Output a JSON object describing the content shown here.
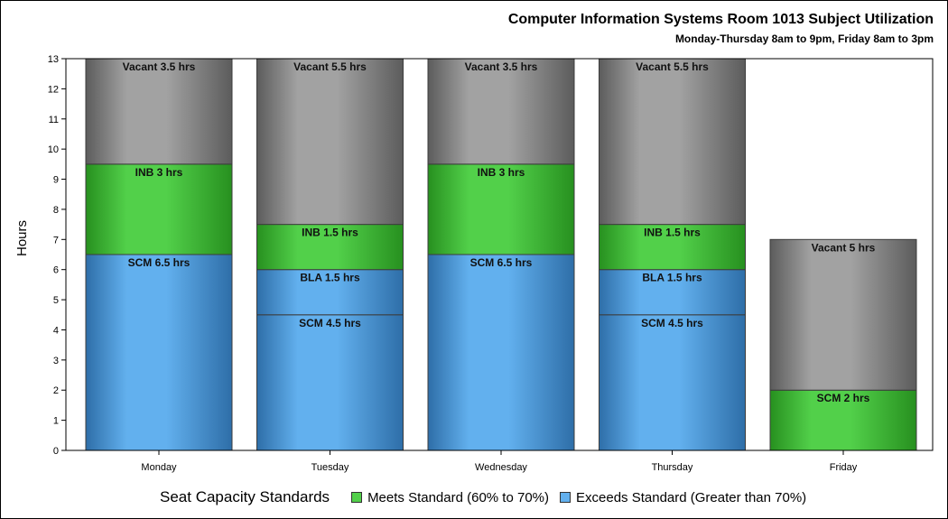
{
  "chart_data": {
    "type": "bar",
    "stacked": true,
    "title": "Computer Information Systems Room 1013 Subject Utilization",
    "subtitle": "Monday-Thursday 8am to 9pm, Friday 8am to 3pm",
    "ylabel": "Hours",
    "xlabel": "",
    "ylim": [
      0,
      13
    ],
    "yticks": [
      0,
      1,
      2,
      3,
      4,
      5,
      6,
      7,
      8,
      9,
      10,
      11,
      12,
      13
    ],
    "grid": false,
    "categories": [
      "Monday",
      "Tuesday",
      "Wednesday",
      "Thursday",
      "Friday"
    ],
    "stacks": [
      [
        {
          "label": "SCM 6.5 hrs",
          "value": 6.5,
          "kind": "exceeds"
        },
        {
          "label": "INB 3 hrs",
          "value": 3,
          "kind": "meets"
        },
        {
          "label": "Vacant 3.5 hrs",
          "value": 3.5,
          "kind": "vacant"
        }
      ],
      [
        {
          "label": "SCM 4.5 hrs",
          "value": 4.5,
          "kind": "exceeds"
        },
        {
          "label": "BLA 1.5 hrs",
          "value": 1.5,
          "kind": "exceeds"
        },
        {
          "label": "INB 1.5 hrs",
          "value": 1.5,
          "kind": "meets"
        },
        {
          "label": "Vacant 5.5 hrs",
          "value": 5.5,
          "kind": "vacant"
        }
      ],
      [
        {
          "label": "SCM 6.5 hrs",
          "value": 6.5,
          "kind": "exceeds"
        },
        {
          "label": "INB 3 hrs",
          "value": 3,
          "kind": "meets"
        },
        {
          "label": "Vacant 3.5 hrs",
          "value": 3.5,
          "kind": "vacant"
        }
      ],
      [
        {
          "label": "SCM 4.5 hrs",
          "value": 4.5,
          "kind": "exceeds"
        },
        {
          "label": "BLA 1.5 hrs",
          "value": 1.5,
          "kind": "exceeds"
        },
        {
          "label": "INB 1.5 hrs",
          "value": 1.5,
          "kind": "meets"
        },
        {
          "label": "Vacant 5.5 hrs",
          "value": 5.5,
          "kind": "vacant"
        }
      ],
      [
        {
          "label": "SCM 2 hrs",
          "value": 2,
          "kind": "meets"
        },
        {
          "label": "Vacant 5 hrs",
          "value": 5,
          "kind": "vacant"
        }
      ]
    ],
    "legend": {
      "position": "bottom",
      "title": "Seat Capacity Standards",
      "items": [
        {
          "key": "meets",
          "label": "Meets Standard (60% to 70%)"
        },
        {
          "key": "exceeds",
          "label": "Exceeds Standard (Greater than 70%)"
        }
      ]
    },
    "colors": {
      "exceeds_light": "#62b0ee",
      "exceeds_dark": "#2e6ea8",
      "meets_light": "#52d04a",
      "meets_dark": "#27901f",
      "vacant_light": "#a2a2a2",
      "vacant_dark": "#5c5c5c"
    }
  }
}
